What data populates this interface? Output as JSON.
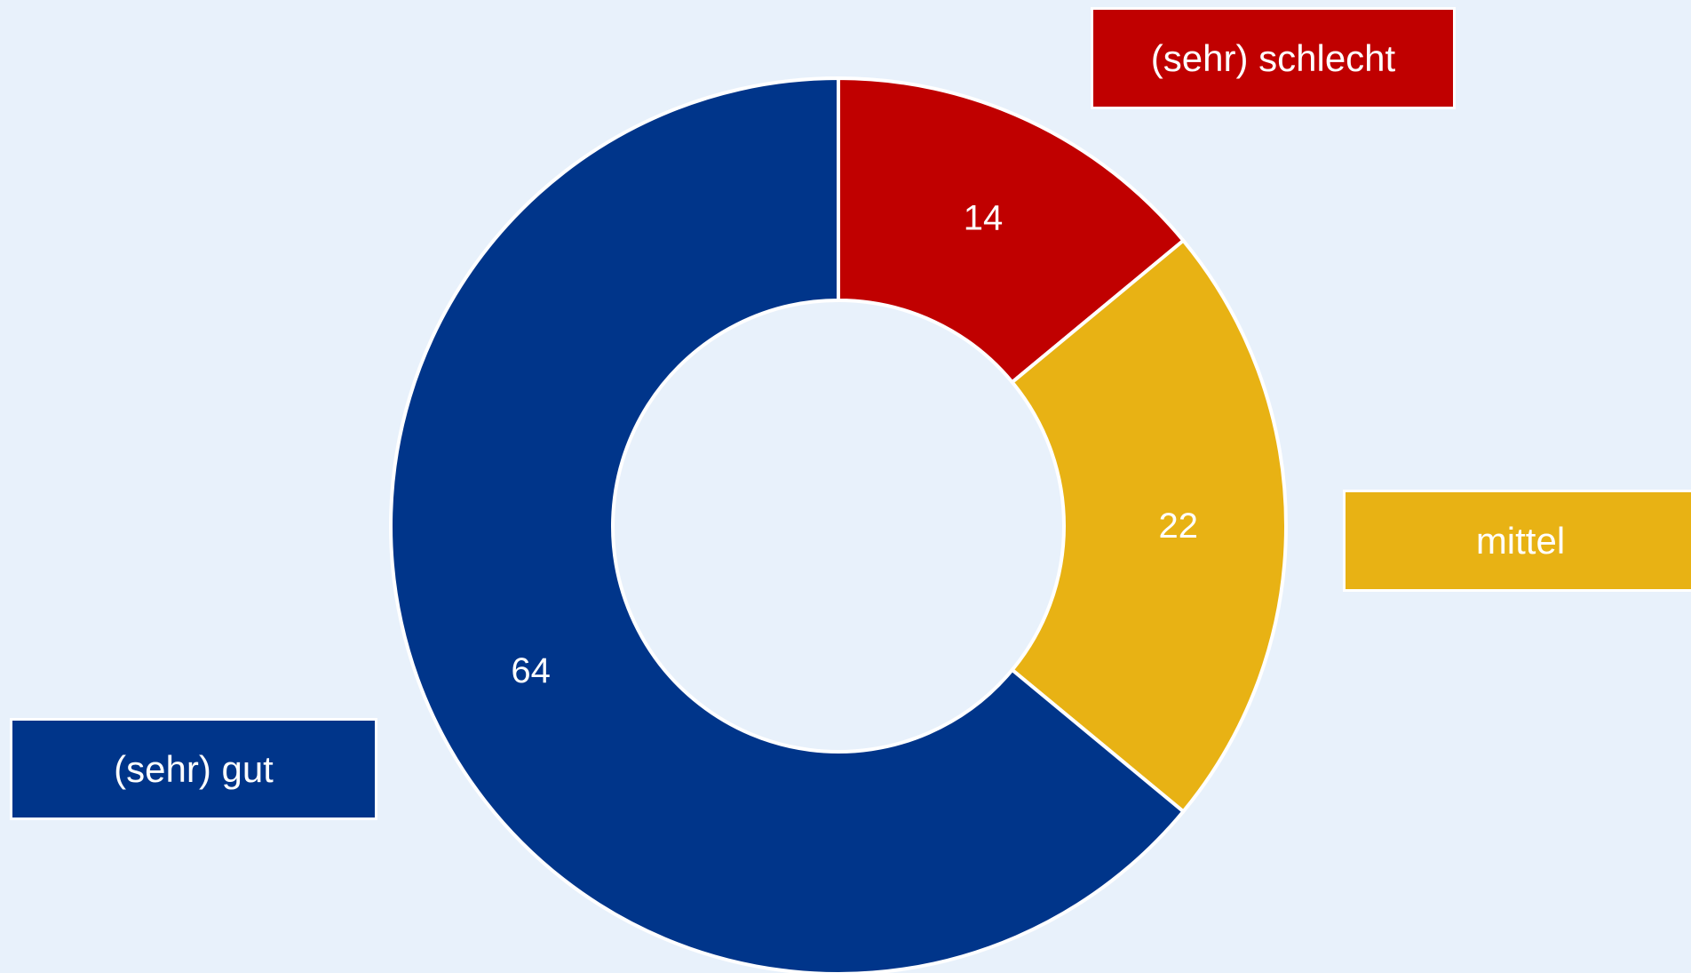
{
  "chart_data": {
    "type": "pie",
    "donut": true,
    "categories": [
      "(sehr) schlecht",
      "mittel",
      "(sehr) gut"
    ],
    "values": [
      14,
      22,
      64
    ],
    "colors": [
      "#c00000",
      "#e8b214",
      "#00358a"
    ],
    "data_labels": [
      "14",
      "22",
      "64"
    ],
    "legend_labels": [
      "(sehr) schlecht",
      "mittel",
      "(sehr) gut"
    ],
    "start_angle_deg": 0,
    "direction": "clockwise",
    "background": "#e8f1fb",
    "border_color": "#ffffff"
  }
}
